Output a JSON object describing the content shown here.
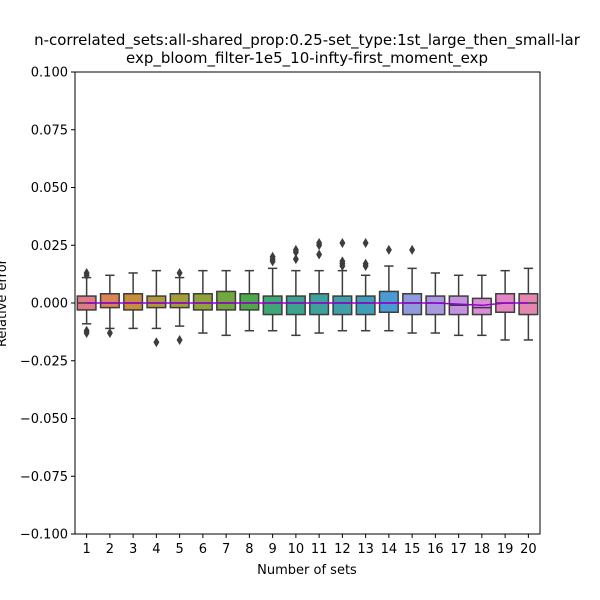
{
  "chart_data": {
    "type": "box",
    "title_line1": "n-correlated_sets:all-shared_prop:0.25-set_type:1st_large_then_small-lar",
    "title_line2": "exp_bloom_filter-1e5_10-infty-first_moment_exp",
    "xlabel": "Number of sets",
    "ylabel": "Relative error",
    "ylim": [
      -0.1,
      0.1
    ],
    "yticks": [
      -0.1,
      -0.075,
      -0.05,
      -0.025,
      0.0,
      0.025,
      0.05,
      0.075,
      0.1
    ],
    "ytick_labels": [
      "−0.100",
      "−0.075",
      "−0.050",
      "−0.025",
      "0.000",
      "0.025",
      "0.050",
      "0.075",
      "0.100"
    ],
    "categories": [
      "1",
      "2",
      "3",
      "4",
      "5",
      "6",
      "7",
      "8",
      "9",
      "10",
      "11",
      "12",
      "13",
      "14",
      "15",
      "16",
      "17",
      "18",
      "19",
      "20"
    ],
    "grid": false,
    "mean_line_color": "#9400d3",
    "series": [
      {
        "x": "1",
        "color": "#e07b86",
        "q1": -0.003,
        "median": 0.0,
        "q3": 0.003,
        "whisker_low": -0.009,
        "whisker_high": 0.011,
        "mean": 0.0,
        "outliers": [
          0.013,
          0.012,
          -0.012,
          -0.013
        ]
      },
      {
        "x": "2",
        "color": "#d98557",
        "q1": -0.002,
        "median": 0.0,
        "q3": 0.004,
        "whisker_low": -0.011,
        "whisker_high": 0.012,
        "mean": 0.0,
        "outliers": [
          -0.013
        ]
      },
      {
        "x": "3",
        "color": "#c78f3d",
        "q1": -0.003,
        "median": 0.0,
        "q3": 0.004,
        "whisker_low": -0.011,
        "whisker_high": 0.013,
        "mean": 0.0,
        "outliers": []
      },
      {
        "x": "4",
        "color": "#b1973d",
        "q1": -0.002,
        "median": 0.0,
        "q3": 0.003,
        "whisker_low": -0.011,
        "whisker_high": 0.014,
        "mean": 0.0,
        "outliers": [
          -0.017
        ]
      },
      {
        "x": "5",
        "color": "#a39d3c",
        "q1": -0.002,
        "median": 0.0,
        "q3": 0.004,
        "whisker_low": -0.01,
        "whisker_high": 0.011,
        "mean": 0.0,
        "outliers": [
          0.013,
          -0.016
        ]
      },
      {
        "x": "6",
        "color": "#8fa23b",
        "q1": -0.003,
        "median": 0.0,
        "q3": 0.004,
        "whisker_low": -0.013,
        "whisker_high": 0.014,
        "mean": 0.0,
        "outliers": []
      },
      {
        "x": "7",
        "color": "#72a63e",
        "q1": -0.003,
        "median": 0.0,
        "q3": 0.005,
        "whisker_low": -0.014,
        "whisker_high": 0.014,
        "mean": 0.0,
        "outliers": []
      },
      {
        "x": "8",
        "color": "#4ea84a",
        "q1": -0.003,
        "median": 0.0,
        "q3": 0.004,
        "whisker_low": -0.012,
        "whisker_high": 0.014,
        "mean": 0.0,
        "outliers": []
      },
      {
        "x": "9",
        "color": "#3fa675",
        "q1": -0.005,
        "median": 0.0,
        "q3": 0.003,
        "whisker_low": -0.012,
        "whisker_high": 0.015,
        "mean": 0.0,
        "outliers": [
          0.02,
          0.019,
          0.018
        ]
      },
      {
        "x": "10",
        "color": "#3da38f",
        "q1": -0.005,
        "median": 0.0,
        "q3": 0.003,
        "whisker_low": -0.014,
        "whisker_high": 0.014,
        "mean": 0.0,
        "outliers": [
          0.023,
          0.022,
          0.019
        ]
      },
      {
        "x": "11",
        "color": "#3ea19c",
        "q1": -0.005,
        "median": 0.0,
        "q3": 0.004,
        "whisker_low": -0.013,
        "whisker_high": 0.014,
        "mean": 0.0,
        "outliers": [
          0.026,
          0.025,
          0.021
        ]
      },
      {
        "x": "12",
        "color": "#3e9fa8",
        "q1": -0.005,
        "median": 0.0,
        "q3": 0.003,
        "whisker_low": -0.012,
        "whisker_high": 0.014,
        "mean": 0.0,
        "outliers": [
          0.026,
          0.018,
          0.017,
          0.016
        ]
      },
      {
        "x": "13",
        "color": "#409db8",
        "q1": -0.005,
        "median": 0.0,
        "q3": 0.003,
        "whisker_low": -0.012,
        "whisker_high": 0.012,
        "mean": 0.0,
        "outliers": [
          0.026,
          0.017,
          0.016
        ]
      },
      {
        "x": "14",
        "color": "#4a9bd4",
        "q1": -0.004,
        "median": 0.0,
        "q3": 0.005,
        "whisker_low": -0.012,
        "whisker_high": 0.016,
        "mean": 0.0,
        "outliers": [
          0.023
        ]
      },
      {
        "x": "15",
        "color": "#8f9bdb",
        "q1": -0.005,
        "median": 0.0,
        "q3": 0.004,
        "whisker_low": -0.013,
        "whisker_high": 0.015,
        "mean": 0.0,
        "outliers": [
          0.023
        ]
      },
      {
        "x": "16",
        "color": "#a99ae0",
        "q1": -0.005,
        "median": 0.0,
        "q3": 0.003,
        "whisker_low": -0.013,
        "whisker_high": 0.013,
        "mean": 0.0,
        "outliers": []
      },
      {
        "x": "17",
        "color": "#c493e0",
        "q1": -0.005,
        "median": -0.001,
        "q3": 0.003,
        "whisker_low": -0.014,
        "whisker_high": 0.012,
        "mean": -0.0005,
        "outliers": []
      },
      {
        "x": "18",
        "color": "#da8ed7",
        "q1": -0.005,
        "median": -0.002,
        "q3": 0.002,
        "whisker_low": -0.014,
        "whisker_high": 0.012,
        "mean": -0.001,
        "outliers": []
      },
      {
        "x": "19",
        "color": "#e287c4",
        "q1": -0.004,
        "median": 0.0,
        "q3": 0.004,
        "whisker_low": -0.016,
        "whisker_high": 0.014,
        "mean": 0.0,
        "outliers": []
      },
      {
        "x": "20",
        "color": "#e386b0",
        "q1": -0.005,
        "median": 0.0,
        "q3": 0.004,
        "whisker_low": -0.016,
        "whisker_high": 0.015,
        "mean": 0.0,
        "outliers": []
      }
    ]
  }
}
